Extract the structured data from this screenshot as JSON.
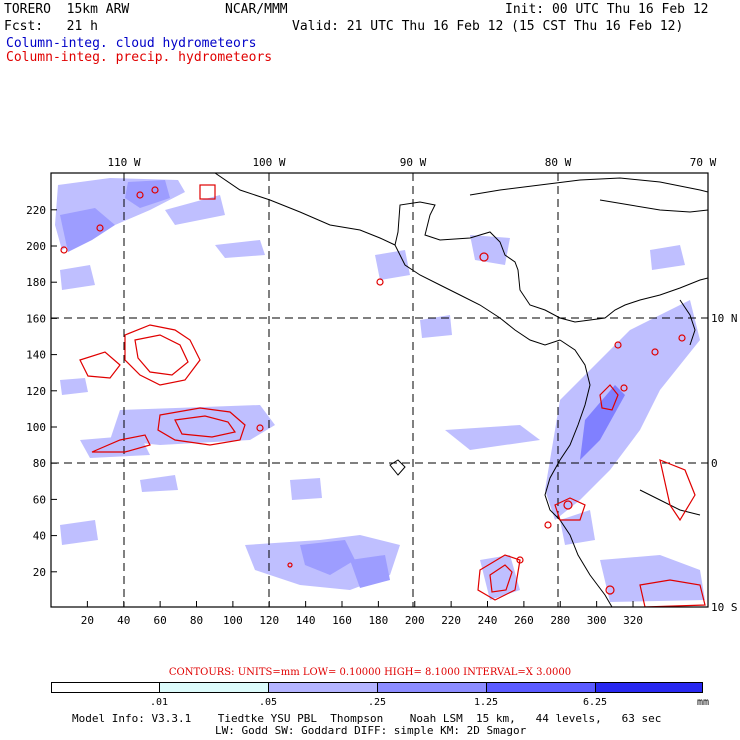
{
  "header": {
    "model": "TORERO  15km ARW",
    "org": "NCAR/MMM",
    "init": "Init: 00 UTC Thu 16 Feb 12",
    "fcst": "Fcst:   21 h",
    "valid": "Valid: 21 UTC Thu 16 Feb 12 (15 CST Thu 16 Feb 12)",
    "field1": "Column-integ. cloud hydrometeors",
    "field2": "Column-integ. precip. hydrometeors",
    "field1_color": "#0000c8",
    "field2_color": "#e00000"
  },
  "map": {
    "lon_labels": [
      "110 W",
      "100 W",
      "90 W",
      "80 W",
      "70 W"
    ],
    "lat_labels": [
      "10 N",
      "0",
      "10 S"
    ],
    "x_ticks": [
      "20",
      "40",
      "60",
      "80",
      "100",
      "120",
      "140",
      "160",
      "180",
      "200",
      "220",
      "240",
      "260",
      "280",
      "300",
      "320"
    ],
    "y_ticks": [
      "220",
      "200",
      "180",
      "160",
      "140",
      "120",
      "100",
      "80",
      "60",
      "40",
      "20"
    ]
  },
  "contours": "CONTOURS:  UNITS=mm  LOW= 0.10000      HIGH=  8.1000      INTERVAL=X  3.0000",
  "colorbar": {
    "labels": [
      ".01",
      ".05",
      ".25",
      "1.25",
      "6.25"
    ],
    "unit": "mm",
    "colors": [
      "#ffffff",
      "#dcfbfb",
      "#b4b4ff",
      "#8c8cff",
      "#5a5aff",
      "#2828f0"
    ]
  },
  "footer": {
    "line1": "Model Info: V3.3.1    Tiedtke YSU PBL  Thompson    Noah LSM  15 km,   44 levels,   63 sec",
    "line2": "LW: Godd SW: Goddard DIFF: simple KM: 2D Smagor"
  }
}
